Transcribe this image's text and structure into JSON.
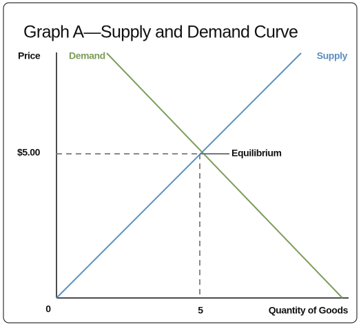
{
  "header": {
    "title": "Graph A—Supply and Demand Curve"
  },
  "axes": {
    "y_label": "Price",
    "x_label": "Quantity of Goods",
    "origin": "0",
    "price_mark": "$5.00",
    "quantity_mark": "5"
  },
  "curves": {
    "demand": "Demand",
    "supply": "Supply"
  },
  "annotation": "Equilibrium"
}
